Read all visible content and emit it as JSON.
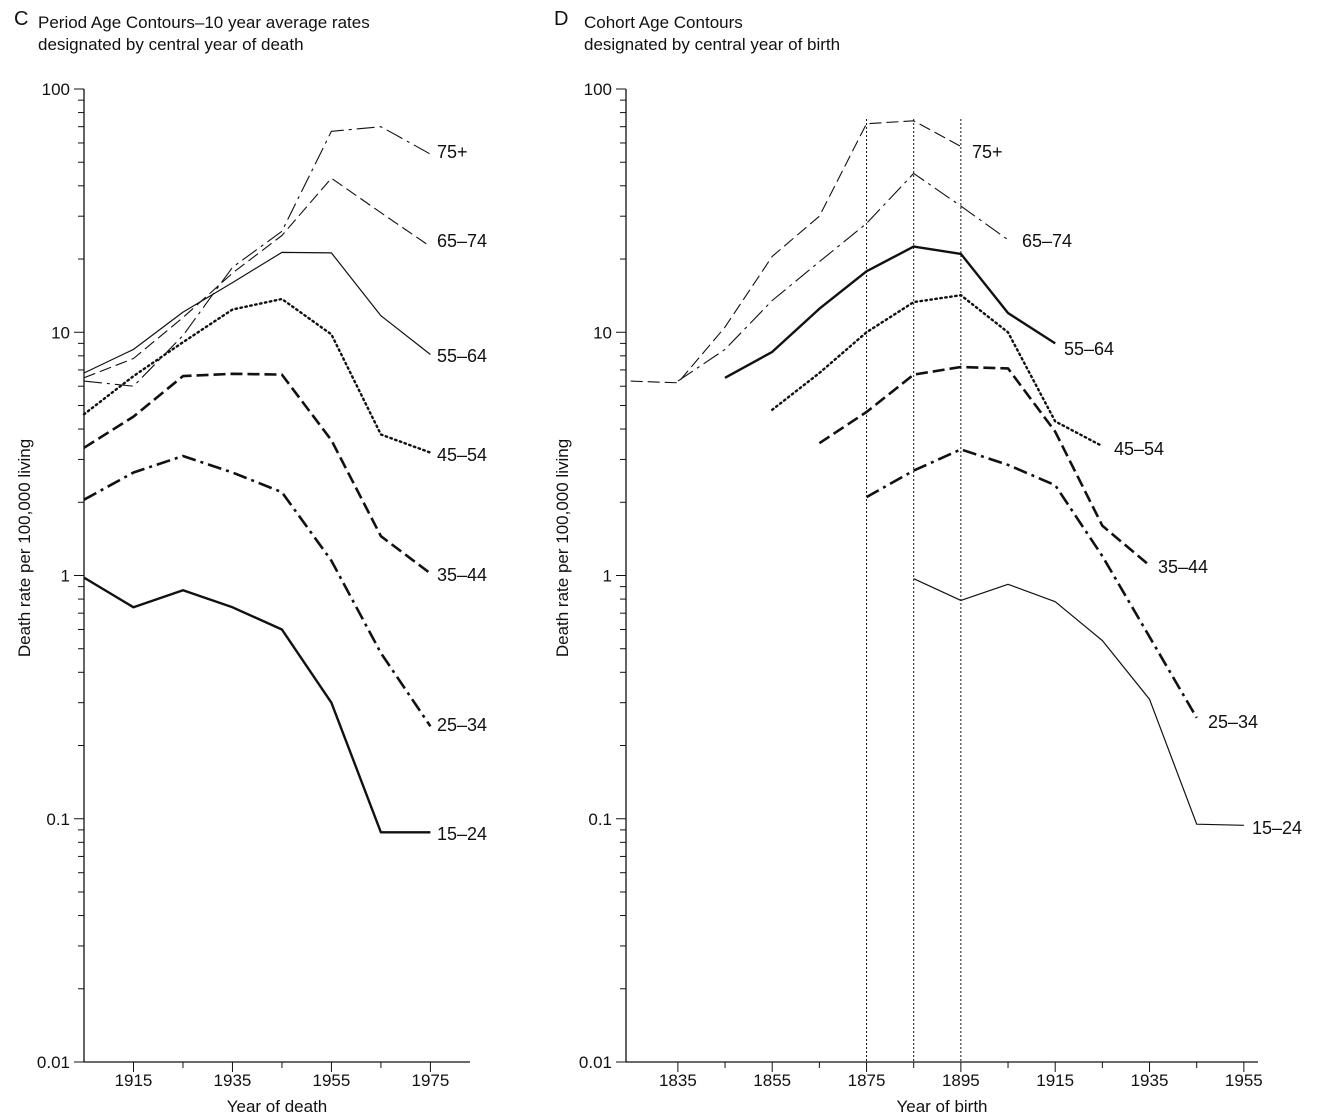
{
  "charts": [
    {
      "letter": "C",
      "title": "Period Age Contours–10 year average rates\ndesignated by central year of death",
      "chart_data": {
        "type": "line",
        "yscale": "log",
        "ylim": [
          0.01,
          100
        ],
        "xlim": [
          1905,
          1983
        ],
        "xticks": [
          1915,
          1935,
          1955,
          1975
        ],
        "xminorticks": [
          1925,
          1945,
          1965
        ],
        "yticks": [
          0.01,
          0.1,
          1,
          10,
          100
        ],
        "ytick_labels": [
          "0.01",
          "0.1",
          "1",
          "10",
          "100"
        ],
        "xlabel": "Year of death",
        "ylabel": "Death rate per 100,000 living",
        "series": [
          {
            "name": "75+",
            "style": "longdashdot-thin",
            "x": [
              1905,
              1915,
              1925,
              1935,
              1945,
              1955,
              1965,
              1975
            ],
            "y": [
              6.3,
              6.0,
              9.7,
              18.5,
              26,
              67,
              70,
              54
            ]
          },
          {
            "name": "65–74",
            "style": "longdash-thin",
            "x": [
              1905,
              1915,
              1925,
              1935,
              1945,
              1955,
              1965,
              1975
            ],
            "y": [
              6.5,
              7.8,
              11.5,
              17.5,
              25,
              43,
              31,
              22.5
            ]
          },
          {
            "name": "55–64",
            "style": "solid-thin",
            "x": [
              1905,
              1915,
              1925,
              1935,
              1945,
              1955,
              1965,
              1975
            ],
            "y": [
              6.8,
              8.5,
              12.1,
              16,
              21.3,
              21.2,
              11.7,
              8.1
            ]
          },
          {
            "name": "45–54",
            "style": "dotted",
            "x": [
              1905,
              1915,
              1925,
              1935,
              1945,
              1955,
              1965,
              1975
            ],
            "y": [
              4.6,
              6.6,
              9.1,
              12.4,
              13.7,
              9.8,
              3.8,
              3.2
            ]
          },
          {
            "name": "35–44",
            "style": "dashed-thick",
            "x": [
              1905,
              1915,
              1925,
              1935,
              1945,
              1955,
              1965,
              1975
            ],
            "y": [
              3.35,
              4.5,
              6.6,
              6.75,
              6.7,
              3.6,
              1.45,
              1.02
            ]
          },
          {
            "name": "25–34",
            "style": "dashdot-thick",
            "x": [
              1905,
              1915,
              1925,
              1935,
              1945,
              1955,
              1965,
              1975
            ],
            "y": [
              2.05,
              2.65,
              3.1,
              2.65,
              2.2,
              1.15,
              0.48,
              0.24
            ]
          },
          {
            "name": "15–24",
            "style": "solid-thick",
            "x": [
              1905,
              1915,
              1925,
              1935,
              1945,
              1955,
              1965,
              1975
            ],
            "y": [
              0.98,
              0.74,
              0.87,
              0.74,
              0.6,
              0.3,
              0.088,
              0.088
            ]
          }
        ]
      }
    },
    {
      "letter": "D",
      "title": "Cohort Age Contours\ndesignated by central year of birth",
      "chart_data": {
        "type": "line",
        "yscale": "log",
        "ylim": [
          0.01,
          100
        ],
        "xlim": [
          1824,
          1958
        ],
        "xticks": [
          1835,
          1855,
          1875,
          1895,
          1915,
          1935,
          1955
        ],
        "xminorticks": [
          1845,
          1865,
          1885,
          1905,
          1925,
          1945
        ],
        "yticks": [
          0.01,
          0.1,
          1,
          10,
          100
        ],
        "ytick_labels": [
          "0.01",
          "0.1",
          "1",
          "10",
          "100"
        ],
        "xlabel": "Year of birth",
        "ylabel": "Death rate per 100,000 living",
        "reference_lines_x": [
          1875,
          1885,
          1895
        ],
        "series": [
          {
            "name": "75+",
            "style": "longdash-thin",
            "x": [
              1825,
              1835,
              1845,
              1855,
              1865,
              1875,
              1885,
              1895
            ],
            "y": [
              6.3,
              6.2,
              10.5,
              20.5,
              30,
              72,
              74,
              58
            ]
          },
          {
            "name": "65–74",
            "style": "longdashdot-thin",
            "x": [
              1835,
              1845,
              1855,
              1865,
              1875,
              1885,
              1895,
              1905
            ],
            "y": [
              6.3,
              8.5,
              13.5,
              19.5,
              28,
              45,
              33,
              24
            ]
          },
          {
            "name": "55–64",
            "style": "solid-thick",
            "x": [
              1845,
              1855,
              1865,
              1875,
              1885,
              1895,
              1905,
              1915
            ],
            "y": [
              6.5,
              8.3,
              12.5,
              17.8,
              22.5,
              21,
              12,
              9
            ]
          },
          {
            "name": "45–54",
            "style": "dotted",
            "x": [
              1855,
              1865,
              1875,
              1885,
              1895,
              1905,
              1915,
              1925
            ],
            "y": [
              4.8,
              6.8,
              10,
              13.3,
              14.2,
              10,
              4.3,
              3.4
            ]
          },
          {
            "name": "35–44",
            "style": "dashed-thick",
            "x": [
              1865,
              1875,
              1885,
              1895,
              1905,
              1915,
              1925,
              1935
            ],
            "y": [
              3.5,
              4.7,
              6.7,
              7.2,
              7.1,
              3.9,
              1.6,
              1.1
            ]
          },
          {
            "name": "25–34",
            "style": "dashdot-thick",
            "x": [
              1875,
              1885,
              1895,
              1905,
              1915,
              1925,
              1935,
              1945
            ],
            "y": [
              2.1,
              2.7,
              3.3,
              2.85,
              2.35,
              1.2,
              0.56,
              0.26
            ]
          },
          {
            "name": "15–24",
            "style": "solid-thin",
            "x": [
              1885,
              1895,
              1905,
              1915,
              1925,
              1935,
              1945,
              1955
            ],
            "y": [
              0.97,
              0.79,
              0.92,
              0.78,
              0.54,
              0.31,
              0.095,
              0.094
            ]
          }
        ]
      }
    }
  ]
}
